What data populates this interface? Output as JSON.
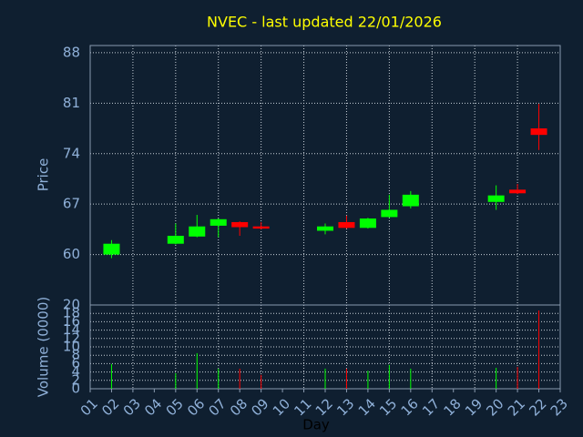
{
  "chart_data": [
    {
      "type": "candlestick",
      "title": "NVEC - last updated 22/01/2026",
      "y_label": "Price",
      "x": [
        2,
        5,
        6,
        7,
        8,
        9,
        12,
        13,
        14,
        15,
        16,
        20,
        21,
        22
      ],
      "open": [
        60.0,
        61.5,
        62.5,
        64.0,
        64.5,
        63.9,
        63.3,
        64.5,
        63.7,
        65.2,
        66.7,
        67.3,
        69.0,
        77.5
      ],
      "high": [
        62.0,
        64.3,
        65.5,
        65.0,
        64.6,
        64.5,
        64.3,
        65.4,
        65.1,
        68.3,
        68.8,
        69.6,
        69.8,
        80.9
      ],
      "low": [
        59.5,
        61.4,
        62.4,
        62.4,
        62.6,
        63.5,
        62.8,
        63.6,
        63.6,
        65.1,
        66.4,
        66.2,
        68.4,
        74.5
      ],
      "close": [
        61.5,
        62.6,
        63.9,
        64.9,
        63.8,
        63.6,
        63.9,
        63.7,
        65.0,
        66.2,
        68.3,
        68.2,
        68.5,
        76.6
      ],
      "up_color": "#00ff00",
      "down_color": "#ff0000",
      "xlim": [
        1,
        23
      ],
      "ylim": [
        53,
        89
      ],
      "yticks": [
        60,
        67,
        74,
        81,
        88
      ],
      "grid": true
    },
    {
      "type": "bar",
      "y_label": "Volume (0000)",
      "x_label": "Day",
      "x": [
        2,
        5,
        6,
        7,
        8,
        9,
        12,
        13,
        14,
        15,
        16,
        20,
        21,
        22
      ],
      "values": [
        5.9,
        3.7,
        8.5,
        4.8,
        4.8,
        3.3,
        4.8,
        4.8,
        4.3,
        5.7,
        4.8,
        5.0,
        5.2,
        18.7
      ],
      "colors": [
        "#00ff00",
        "#00ff00",
        "#00ff00",
        "#00ff00",
        "#ff0000",
        "#ff0000",
        "#00ff00",
        "#ff0000",
        "#00ff00",
        "#00ff00",
        "#00ff00",
        "#00ff00",
        "#ff0000",
        "#ff0000"
      ],
      "xlim": [
        1,
        23
      ],
      "xticks": [
        {
          "value": 1,
          "label": "01"
        },
        {
          "value": 2,
          "label": "02"
        },
        {
          "value": 3,
          "label": "03"
        },
        {
          "value": 4,
          "label": "04"
        },
        {
          "value": 5,
          "label": "05"
        },
        {
          "value": 6,
          "label": "06"
        },
        {
          "value": 7,
          "label": "07"
        },
        {
          "value": 8,
          "label": "08"
        },
        {
          "value": 9,
          "label": "09"
        },
        10,
        11,
        12,
        13,
        14,
        15,
        16,
        17,
        18,
        19,
        20,
        21,
        22,
        23
      ],
      "ylim": [
        0,
        20
      ],
      "yticks": [
        0,
        2,
        4,
        6,
        8,
        10,
        12,
        14,
        16,
        18,
        20
      ],
      "grid": true
    }
  ]
}
